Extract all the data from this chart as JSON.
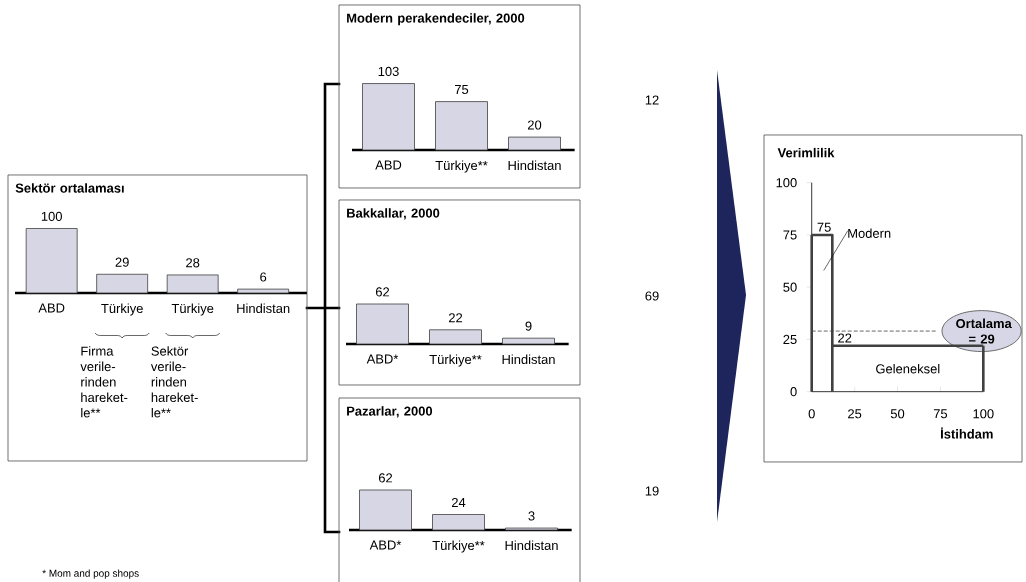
{
  "chart_data": [
    {
      "type": "bar",
      "title": "Sektör ortalaması",
      "categories": [
        "ABD",
        "Türkiye",
        "Türkiye",
        "Hindistan"
      ],
      "values": [
        100,
        29,
        28,
        6
      ],
      "color": "#d6d6e4",
      "data_labels": true,
      "annotations": [
        "Firma verile-rinden hareket-le**",
        "Sektör verile-rinden hareket-le**",
        "* Mom and pop shops"
      ]
    },
    {
      "type": "bar",
      "title": "Modern perakendeciler, 2000",
      "categories": [
        "ABD",
        "Türkiye**",
        "Hindistan"
      ],
      "values": [
        103,
        75,
        20
      ],
      "color": "#d6d6e4",
      "data_labels": true
    },
    {
      "type": "bar",
      "title": "Bakkallar, 2000",
      "categories": [
        "ABD*",
        "Türkiye**",
        "Hindistan"
      ],
      "values": [
        62,
        22,
        9
      ],
      "color": "#d6d6e4",
      "data_labels": true
    },
    {
      "type": "bar",
      "title": "Pazarlar, 2000",
      "categories": [
        "ABD*",
        "Türkiye**",
        "Hindistan"
      ],
      "values": [
        62,
        24,
        3
      ],
      "color": "#d6d6e4",
      "data_labels": true
    },
    {
      "type": "other",
      "annotations": [
        "12",
        "69",
        "19"
      ]
    },
    {
      "type": "line",
      "xlabel": "İstihdam",
      "ylabel": "Verimlilik",
      "xlim": [
        0,
        100
      ],
      "ylim": [
        0,
        100
      ],
      "xticks": [
        0,
        25,
        50,
        75,
        100
      ],
      "yticks": [
        0,
        25,
        50,
        75,
        100
      ],
      "series": [
        {
          "type": "step",
          "color": "#404040",
          "x": [
            0,
            12,
            100
          ],
          "values": [
            75,
            22,
            22
          ],
          "value_labels": [
            "75",
            "22",
            null
          ]
        }
      ],
      "annotations": [
        "Modern",
        "Geleneksel"
      ],
      "ref_lines": [
        {
          "axis": "y",
          "value": 29,
          "label": "Ortalama = 29",
          "line_style": "dashed"
        }
      ]
    }
  ]
}
